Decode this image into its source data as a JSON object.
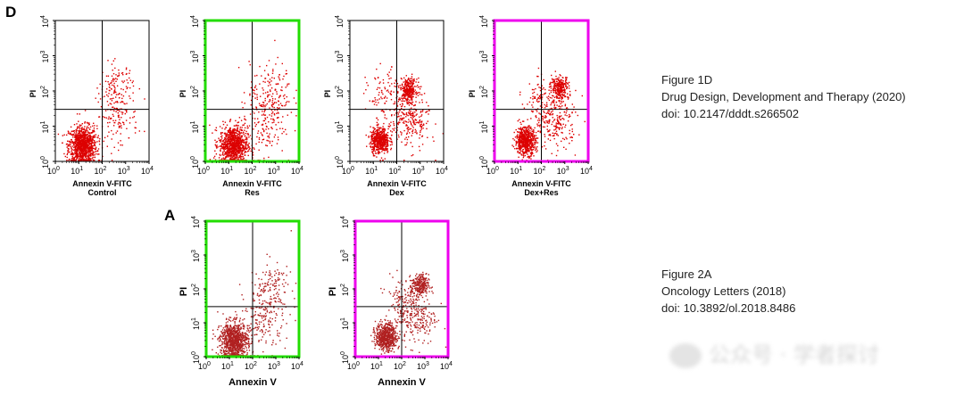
{
  "figure1": {
    "letter": "D",
    "panels": [
      {
        "x_label": "Annexin V-FITC",
        "condition": "Control",
        "y_label": "PI",
        "frame_color": "#000000"
      },
      {
        "x_label": "Annexin V-FITC",
        "condition": "Res",
        "y_label": "PI",
        "frame_color": "#22dd00"
      },
      {
        "x_label": "Annexin V-FITC",
        "condition": "Dex",
        "y_label": "PI",
        "frame_color": "#000000"
      },
      {
        "x_label": "Annexin V-FITC",
        "condition": "Dex+Res",
        "y_label": "PI",
        "frame_color": "#ee00ee"
      }
    ],
    "caption": [
      "Figure 1D",
      "Drug Design, Development and Therapy (2020)",
      "doi: 10.2147/dddt.s266502"
    ]
  },
  "figure2": {
    "letter": "A",
    "panels": [
      {
        "x_label": "Annexin V",
        "condition": "",
        "y_label": "PI",
        "frame_color": "#22dd00"
      },
      {
        "x_label": "Annexin V",
        "condition": "",
        "y_label": "PI",
        "frame_color": "#ee00ee"
      }
    ],
    "caption": [
      "Figure 2A",
      "Oncology Letters (2018)",
      "doi: 10.3892/ol.2018.8486"
    ]
  },
  "watermark": "公众号 · 学者探讨",
  "chart_data": [
    {
      "type": "scatter",
      "subtype": "flow-cytometry-quadrant",
      "figure": "Figure 1D",
      "condition": "Control",
      "xlabel": "Annexin V-FITC",
      "ylabel": "PI",
      "x_scale": "log",
      "y_scale": "log",
      "xlim": [
        1,
        10000
      ],
      "ylim": [
        1,
        10000
      ],
      "quadrant_gates": {
        "x": 100,
        "y": 30
      },
      "x_ticks": [
        "10^0",
        "10^1",
        "10^2",
        "10^3",
        "10^4"
      ],
      "y_ticks": [
        "10^0",
        "10^1",
        "10^2",
        "10^3",
        "10^4"
      ],
      "series": [
        {
          "clusters": [
            {
              "x": 14,
              "y": 3,
              "spread": 0.3,
              "share": 0.8
            },
            {
              "x": 400,
              "y": 20,
              "spread": 0.45,
              "share": 0.12
            },
            {
              "x": 400,
              "y": 150,
              "spread": 0.35,
              "share": 0.08
            }
          ],
          "color": "#dd0000"
        }
      ]
    },
    {
      "type": "scatter",
      "subtype": "flow-cytometry-quadrant",
      "figure": "Figure 1D",
      "condition": "Res",
      "xlabel": "Annexin V-FITC",
      "ylabel": "PI",
      "x_scale": "log",
      "y_scale": "log",
      "xlim": [
        1,
        10000
      ],
      "ylim": [
        1,
        10000
      ],
      "quadrant_gates": {
        "x": 100,
        "y": 30
      },
      "x_ticks": [
        "10^0",
        "10^1",
        "10^2",
        "10^3",
        "10^4"
      ],
      "y_ticks": [
        "10^0",
        "10^1",
        "10^2",
        "10^3",
        "10^4"
      ],
      "series": [
        {
          "clusters": [
            {
              "x": 15,
              "y": 3,
              "spread": 0.3,
              "share": 0.75
            },
            {
              "x": 250,
              "y": 12,
              "spread": 0.5,
              "share": 0.13
            },
            {
              "x": 600,
              "y": 100,
              "spread": 0.45,
              "share": 0.12
            }
          ],
          "color": "#dd0000"
        }
      ]
    },
    {
      "type": "scatter",
      "subtype": "flow-cytometry-quadrant",
      "figure": "Figure 1D",
      "condition": "Dex",
      "xlabel": "Annexin V-FITC",
      "ylabel": "PI",
      "x_scale": "log",
      "y_scale": "log",
      "xlim": [
        1,
        10000
      ],
      "ylim": [
        1,
        10000
      ],
      "quadrant_gates": {
        "x": 100,
        "y": 30
      },
      "x_ticks": [
        "10^0",
        "10^1",
        "10^2",
        "10^3",
        "10^4"
      ],
      "y_ticks": [
        "10^0",
        "10^1",
        "10^2",
        "10^3",
        "10^4"
      ],
      "series": [
        {
          "clusters": [
            {
              "x": 18,
              "y": 4,
              "spread": 0.2,
              "share": 0.45
            },
            {
              "x": 300,
              "y": 110,
              "spread": 0.18,
              "share": 0.25
            },
            {
              "x": 300,
              "y": 15,
              "spread": 0.45,
              "share": 0.22
            },
            {
              "x": 30,
              "y": 80,
              "spread": 0.4,
              "share": 0.08
            }
          ],
          "color": "#dd0000"
        }
      ]
    },
    {
      "type": "scatter",
      "subtype": "flow-cytometry-quadrant",
      "figure": "Figure 1D",
      "condition": "Dex+Res",
      "xlabel": "Annexin V-FITC",
      "ylabel": "PI",
      "x_scale": "log",
      "y_scale": "log",
      "xlim": [
        1,
        10000
      ],
      "ylim": [
        1,
        10000
      ],
      "quadrant_gates": {
        "x": 100,
        "y": 30
      },
      "x_ticks": [
        "10^0",
        "10^1",
        "10^2",
        "10^3",
        "10^4"
      ],
      "y_ticks": [
        "10^0",
        "10^1",
        "10^2",
        "10^3",
        "10^4"
      ],
      "series": [
        {
          "clusters": [
            {
              "x": 20,
              "y": 4,
              "spread": 0.22,
              "share": 0.5
            },
            {
              "x": 600,
              "y": 130,
              "spread": 0.18,
              "share": 0.22
            },
            {
              "x": 400,
              "y": 15,
              "spread": 0.45,
              "share": 0.2
            },
            {
              "x": 90,
              "y": 60,
              "spread": 0.35,
              "share": 0.08
            }
          ],
          "color": "#dd0000"
        }
      ]
    },
    {
      "type": "scatter",
      "subtype": "flow-cytometry-quadrant",
      "figure": "Figure 2A",
      "condition": "",
      "xlabel": "Annexin V",
      "ylabel": "PI",
      "x_scale": "log",
      "y_scale": "log",
      "xlim": [
        1,
        10000
      ],
      "ylim": [
        1,
        10000
      ],
      "quadrant_gates": {
        "x": 100,
        "y": 30
      },
      "x_ticks": [
        "10^0",
        "10^1",
        "10^2",
        "10^3",
        "10^4"
      ],
      "y_ticks": [
        "10^0",
        "10^1",
        "10^2",
        "10^3",
        "10^4"
      ],
      "series": [
        {
          "clusters": [
            {
              "x": 15,
              "y": 3,
              "spread": 0.3,
              "share": 0.75
            },
            {
              "x": 250,
              "y": 12,
              "spread": 0.5,
              "share": 0.13
            },
            {
              "x": 600,
              "y": 100,
              "spread": 0.45,
              "share": 0.12
            }
          ],
          "color": "#b02020"
        }
      ]
    },
    {
      "type": "scatter",
      "subtype": "flow-cytometry-quadrant",
      "figure": "Figure 2A",
      "condition": "",
      "xlabel": "Annexin V",
      "ylabel": "PI",
      "x_scale": "log",
      "y_scale": "log",
      "xlim": [
        1,
        10000
      ],
      "ylim": [
        1,
        10000
      ],
      "quadrant_gates": {
        "x": 100,
        "y": 30
      },
      "x_ticks": [
        "10^0",
        "10^1",
        "10^2",
        "10^3",
        "10^4"
      ],
      "y_ticks": [
        "10^0",
        "10^1",
        "10^2",
        "10^3",
        "10^4"
      ],
      "series": [
        {
          "clusters": [
            {
              "x": 20,
              "y": 4,
              "spread": 0.22,
              "share": 0.5
            },
            {
              "x": 600,
              "y": 130,
              "spread": 0.18,
              "share": 0.22
            },
            {
              "x": 400,
              "y": 15,
              "spread": 0.45,
              "share": 0.2
            },
            {
              "x": 90,
              "y": 60,
              "spread": 0.35,
              "share": 0.08
            }
          ],
          "color": "#b02020"
        }
      ]
    }
  ]
}
